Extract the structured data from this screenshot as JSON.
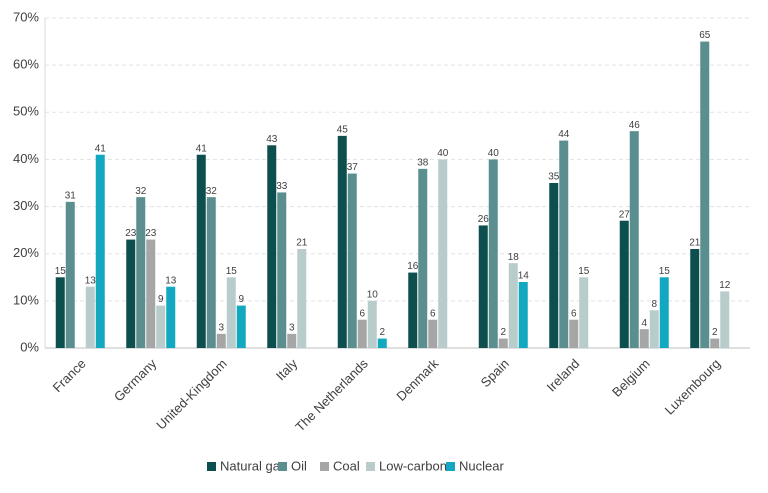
{
  "chart_data": {
    "type": "bar",
    "categories": [
      "France",
      "Germany",
      "United-Kingdom",
      "Italy",
      "The Netherlands",
      "Denmark",
      "Spain",
      "Ireland",
      "Belgium",
      "Luxembourg"
    ],
    "series": [
      {
        "name": "Natural gas",
        "color": "#0d4f4f",
        "values": [
          15,
          23,
          41,
          43,
          45,
          16,
          26,
          35,
          27,
          21
        ]
      },
      {
        "name": "Oil",
        "color": "#5b8f8f",
        "values": [
          31,
          32,
          32,
          33,
          37,
          38,
          40,
          44,
          46,
          65
        ]
      },
      {
        "name": "Coal",
        "color": "#a6a6a6",
        "values": [
          null,
          23,
          3,
          3,
          6,
          6,
          2,
          6,
          4,
          2
        ]
      },
      {
        "name": "Low-carbon",
        "color": "#b8cccc",
        "values": [
          13,
          9,
          15,
          21,
          10,
          40,
          18,
          15,
          8,
          12
        ]
      },
      {
        "name": "Nuclear",
        "color": "#12a8bf",
        "values": [
          41,
          13,
          9,
          null,
          2,
          null,
          14,
          null,
          15,
          null
        ]
      }
    ],
    "ylim": [
      0,
      70
    ],
    "yticks": [
      {
        "value": 0,
        "label": "0%"
      },
      {
        "value": 10,
        "label": "10%"
      },
      {
        "value": 20,
        "label": "20%"
      },
      {
        "value": 30,
        "label": "30%"
      },
      {
        "value": 40,
        "label": "40%"
      },
      {
        "value": 50,
        "label": "50%"
      },
      {
        "value": 60,
        "label": "60%"
      },
      {
        "value": 70,
        "label": "70%"
      }
    ],
    "grid": true,
    "legend": "bottom"
  }
}
